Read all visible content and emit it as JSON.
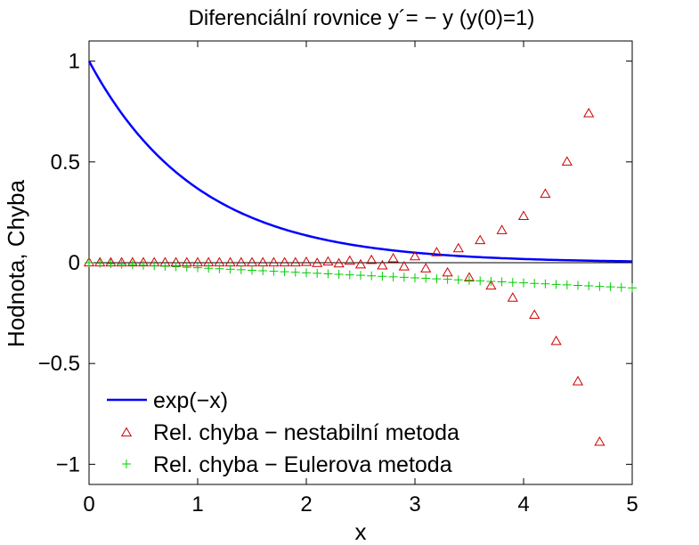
{
  "chart_data": {
    "type": "line",
    "title": "Diferenciální rovnice y´= − y (y(0)=1)",
    "xlabel": "x",
    "ylabel": "Hodnota, Chyba",
    "xlim": [
      0,
      5
    ],
    "ylim": [
      -1.1,
      1.1
    ],
    "x_ticks": [
      "0",
      "1",
      "2",
      "3",
      "4",
      "5"
    ],
    "y_ticks": [
      "−1",
      "−0.5",
      "0",
      "0.5",
      "1"
    ],
    "grid": false,
    "legend_position": "bottom-left",
    "series": [
      {
        "name": "exp(−x)",
        "style": "line",
        "color": "#0000ff",
        "function": "exp(-x)",
        "x_range": [
          0,
          5
        ]
      },
      {
        "name": "Rel. chyba − nestabilní metoda",
        "style": "triangle",
        "color": "#cc0000",
        "x": [
          0,
          0.1,
          0.2,
          0.3,
          0.4,
          0.5,
          0.6,
          0.7,
          0.8,
          0.9,
          1.0,
          1.1,
          1.2,
          1.3,
          1.4,
          1.5,
          1.6,
          1.7,
          1.8,
          1.9,
          2.0,
          2.1,
          2.2,
          2.3,
          2.4,
          2.5,
          2.6,
          2.7,
          2.8,
          2.9,
          3.0,
          3.1,
          3.2,
          3.3,
          3.4,
          3.5,
          3.6,
          3.7,
          3.8,
          3.9,
          4.0,
          4.1,
          4.2,
          4.3,
          4.4,
          4.5,
          4.6,
          4.7
        ],
        "y": [
          0,
          0,
          0,
          0,
          0,
          0,
          0,
          0,
          0,
          0,
          0,
          0,
          0,
          0,
          0,
          0,
          0,
          0,
          0,
          0,
          0.002,
          -0.003,
          0.004,
          -0.005,
          0.008,
          -0.01,
          0.012,
          -0.015,
          0.02,
          -0.02,
          0.03,
          -0.03,
          0.05,
          -0.05,
          0.07,
          -0.075,
          0.11,
          -0.115,
          0.16,
          -0.175,
          0.23,
          -0.26,
          0.34,
          -0.39,
          0.5,
          -0.59,
          0.74,
          -0.89
        ]
      },
      {
        "name": "Rel. chyba − Eulerova metoda",
        "style": "plus",
        "color": "#00cc00",
        "x": [
          0,
          0.1,
          0.2,
          0.3,
          0.4,
          0.5,
          0.6,
          0.7,
          0.8,
          0.9,
          1.0,
          1.1,
          1.2,
          1.3,
          1.4,
          1.5,
          1.6,
          1.7,
          1.8,
          1.9,
          2.0,
          2.1,
          2.2,
          2.3,
          2.4,
          2.5,
          2.6,
          2.7,
          2.8,
          2.9,
          3.0,
          3.1,
          3.2,
          3.3,
          3.4,
          3.5,
          3.6,
          3.7,
          3.8,
          3.9,
          4.0,
          4.1,
          4.2,
          4.3,
          4.4,
          4.5,
          4.6,
          4.7,
          4.8,
          4.9,
          5.0
        ],
        "y": [
          0,
          -0.0025,
          -0.005,
          -0.0075,
          -0.01,
          -0.0125,
          -0.015,
          -0.0175,
          -0.02,
          -0.0225,
          -0.025,
          -0.0275,
          -0.03,
          -0.0325,
          -0.035,
          -0.0375,
          -0.04,
          -0.0425,
          -0.045,
          -0.0475,
          -0.05,
          -0.0525,
          -0.055,
          -0.0575,
          -0.06,
          -0.0625,
          -0.065,
          -0.0675,
          -0.07,
          -0.0725,
          -0.075,
          -0.0775,
          -0.08,
          -0.0825,
          -0.085,
          -0.0875,
          -0.09,
          -0.0925,
          -0.095,
          -0.0975,
          -0.1,
          -0.1025,
          -0.105,
          -0.1075,
          -0.11,
          -0.1125,
          -0.115,
          -0.1175,
          -0.12,
          -0.1225,
          -0.125
        ]
      }
    ]
  }
}
